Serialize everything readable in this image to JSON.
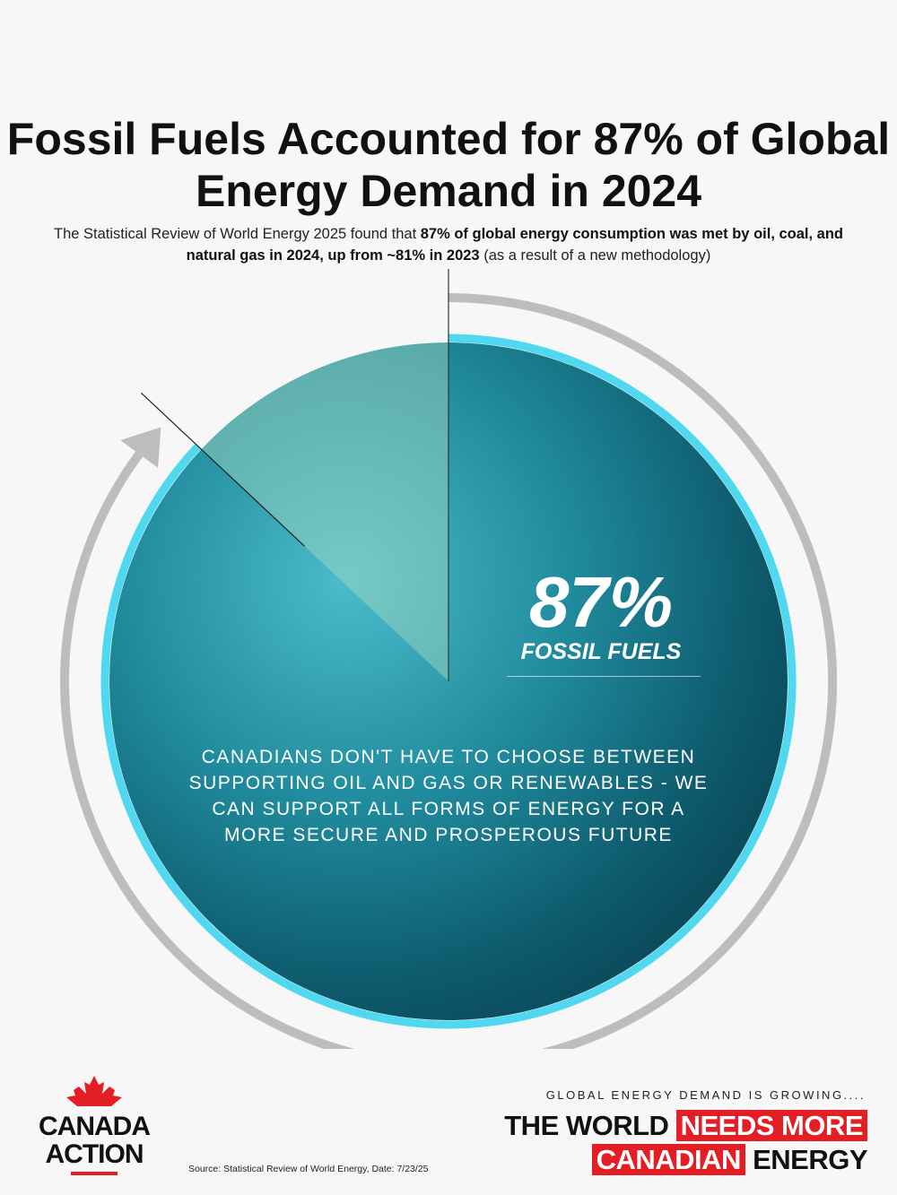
{
  "header": {
    "title": "Fossil Fuels Accounted for 87% of Global Energy Demand in 2024",
    "subtitle_plain_1": "The Statistical Review of World Energy 2025 found that ",
    "subtitle_bold": "87% of global energy consumption was met by oil, coal, and natural gas in 2024, up from ~81% in 2023",
    "subtitle_plain_2": " (as a result of a new methodology)"
  },
  "chart_data": {
    "type": "pie",
    "categories": [
      "FOSSIL FUELS",
      ""
    ],
    "values": [
      87,
      13
    ],
    "data_label": "87%",
    "label": "FOSSIL FUELS",
    "colors": {
      "fossil": "#0e5e6e",
      "other": "#5fc8d8",
      "ring": "#4fd8f0",
      "arrow": "#bdbdbd"
    }
  },
  "message": "CANADIANS DON'T HAVE TO CHOOSE BETWEEN SUPPORTING OIL AND GAS OR RENEWABLES - WE CAN SUPPORT ALL FORMS OF ENERGY FOR A MORE SECURE AND PROSPEROUS FUTURE",
  "footer": {
    "logo_line1": "CANADA",
    "logo_line2": "ACTION",
    "source": "Source: Statistical Review of World Energy, Date: 7/23/25",
    "tagline": "GLOBAL ENERGY DEMAND IS GROWING....",
    "slogan_1": "THE WORLD",
    "slogan_2": "NEEDS MORE",
    "slogan_3": "CANADIAN",
    "slogan_4": "ENERGY",
    "brand_red": "#e31e24"
  }
}
